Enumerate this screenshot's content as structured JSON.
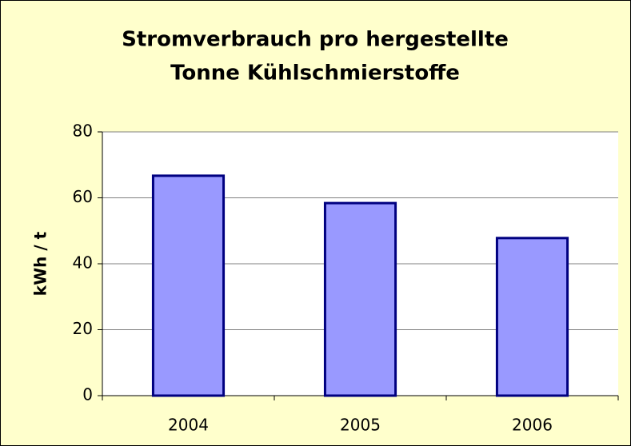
{
  "chart_data": {
    "type": "bar",
    "title": [
      "Stromverbrauch pro hergestellte",
      "Tonne Kühlschmierstoffe"
    ],
    "y_label": "kWh / t",
    "categories": [
      "2004",
      "2005",
      "2006"
    ],
    "values": [
      66.7,
      58.4,
      47.8
    ],
    "color": "#9999ff",
    "ylim": [
      0,
      80
    ],
    "yticks": [
      0,
      20,
      40,
      60,
      80
    ],
    "grid": true
  }
}
